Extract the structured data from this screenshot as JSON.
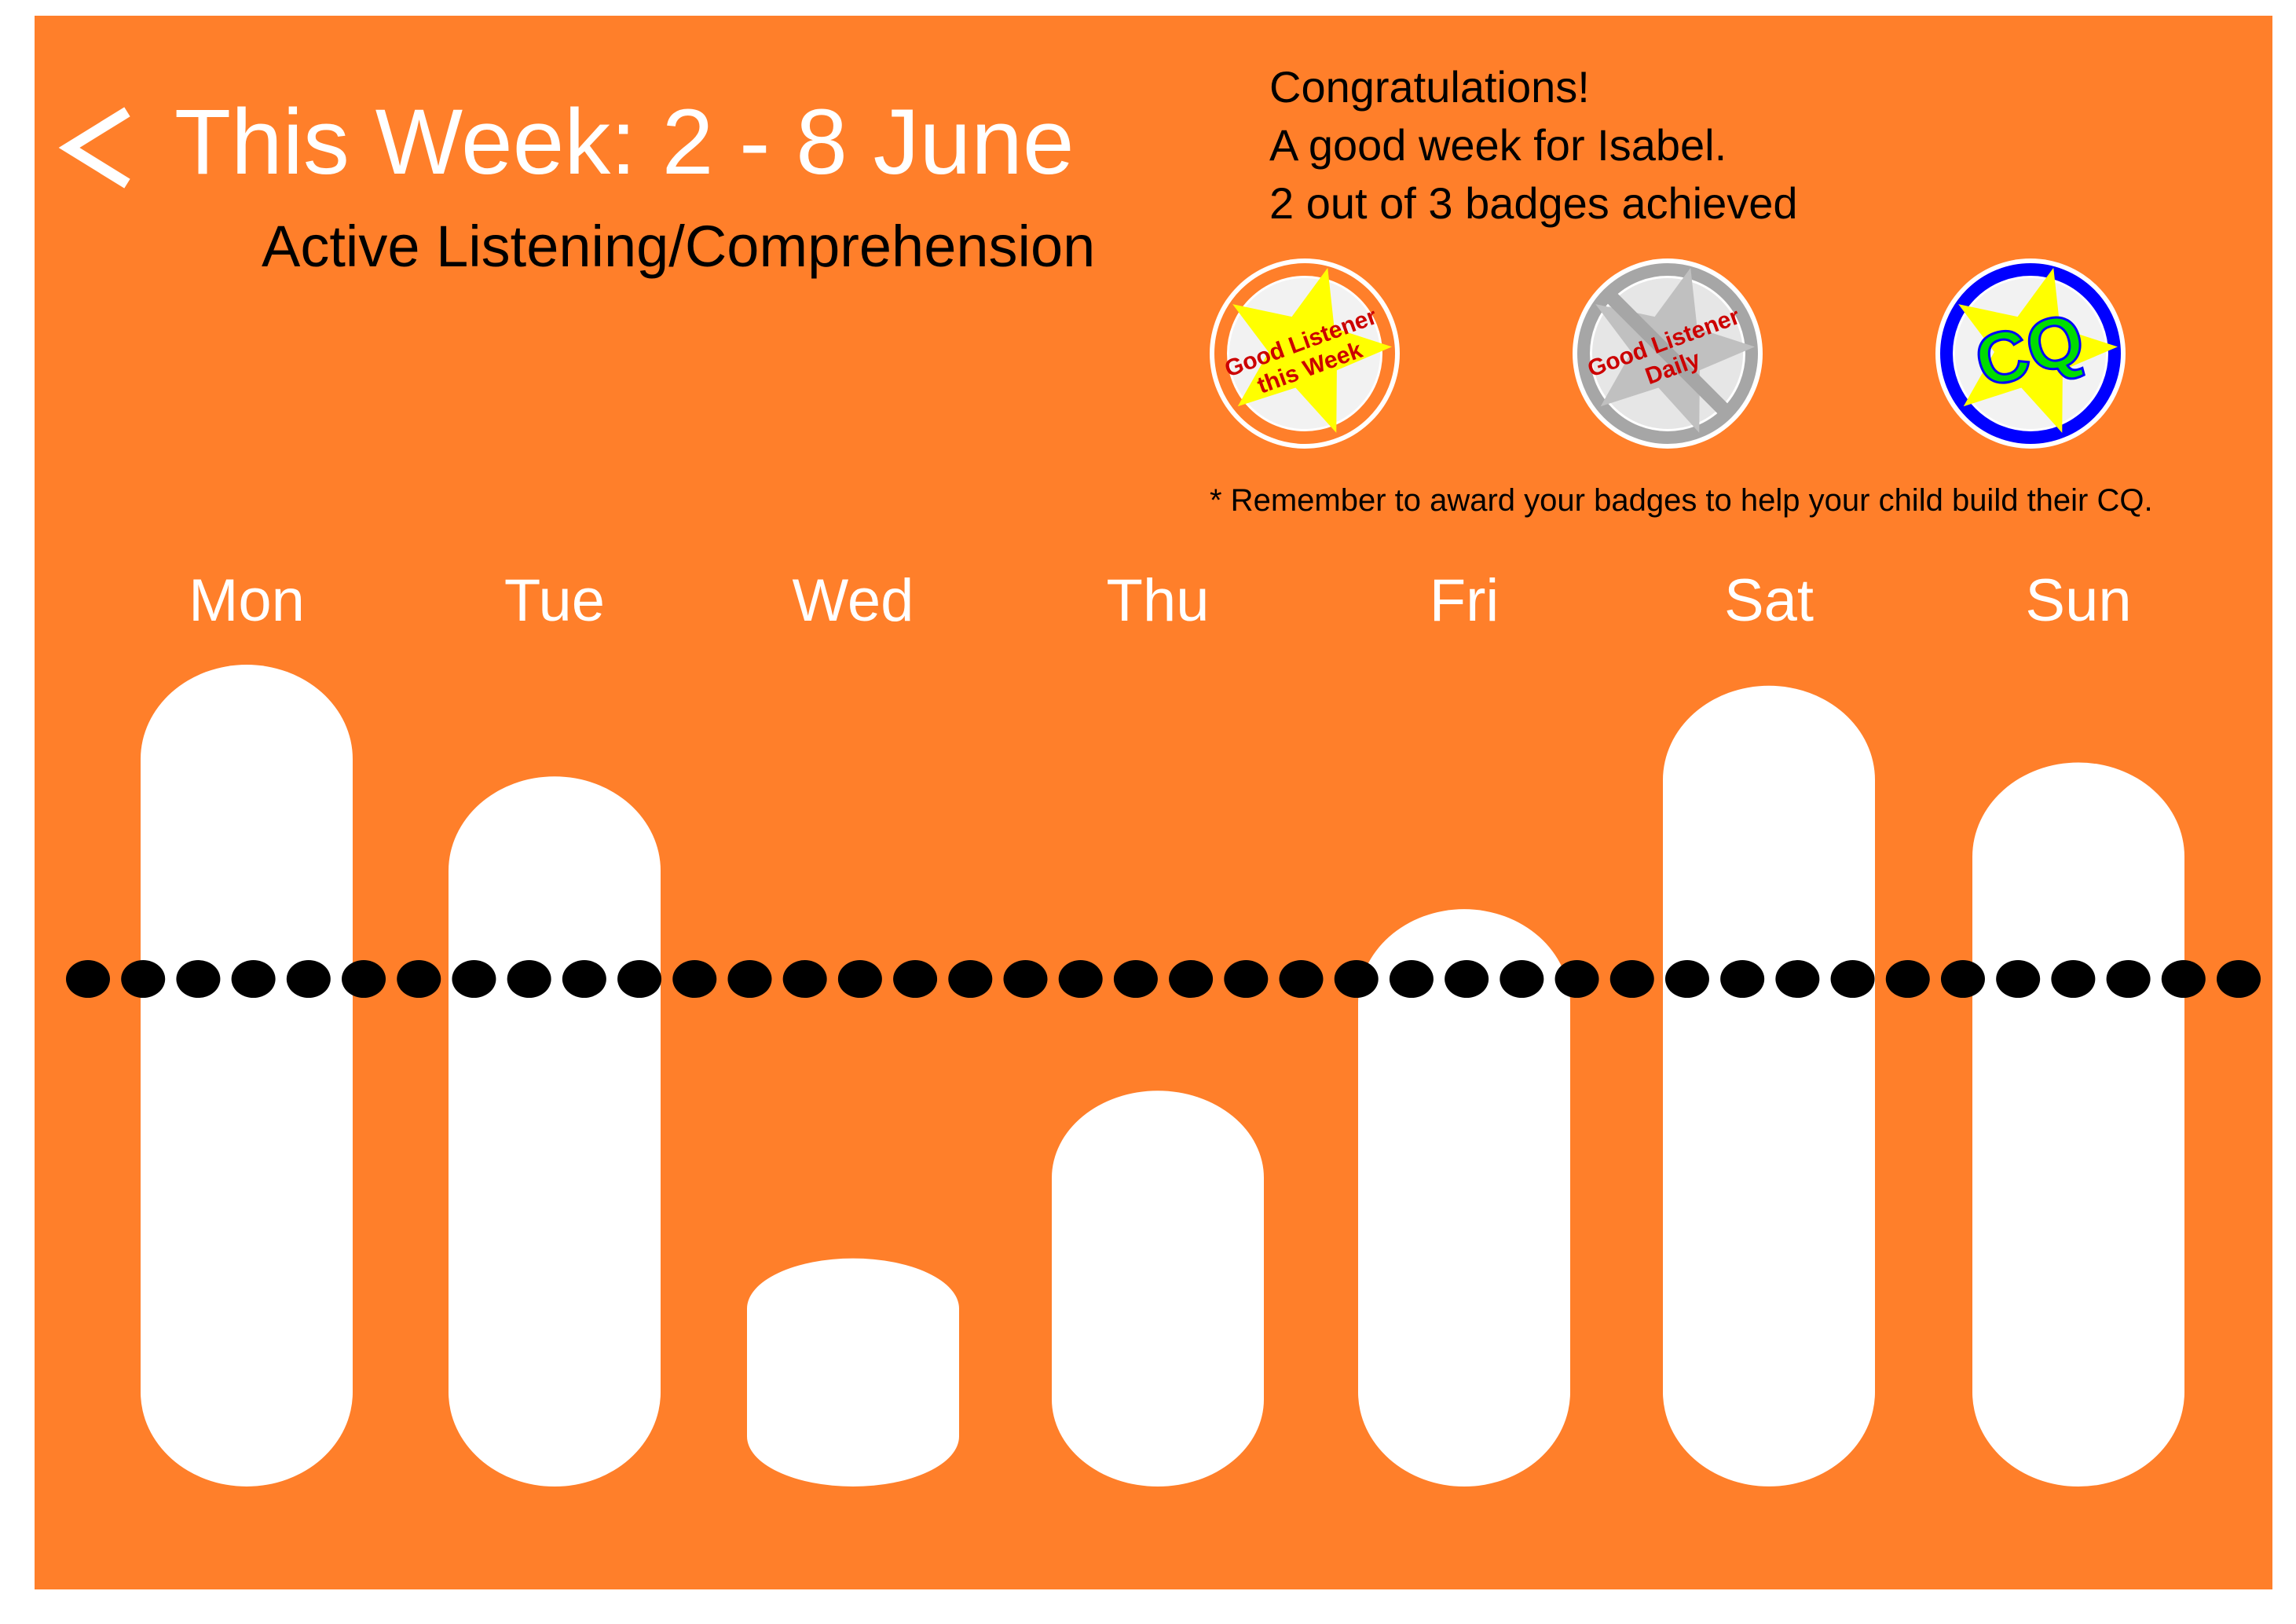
{
  "header": {
    "back_icon": "chevron-left-icon",
    "title": "This Week:  2 - 8 June",
    "subtitle": "Active Listening/Comprehension"
  },
  "summary": {
    "lines": [
      "Congratulations!",
      "A good week for Isabel.",
      "2 out of 3 badges achieved"
    ]
  },
  "badges": [
    {
      "name": "Good Listener this Week",
      "lines": [
        "Good Listener",
        "this Week"
      ],
      "achieved": true,
      "ring_color": "#FF7F2A",
      "star_color": "#FFFF00",
      "text_color": "#CC0000"
    },
    {
      "name": "Good Listener Daily",
      "lines": [
        "Good Listener",
        "Daily"
      ],
      "achieved": false,
      "ring_color": "#A6A6A6",
      "star_color": "#C0C0C0",
      "text_color": "#CC0000"
    },
    {
      "name": "CQ",
      "lines": [
        "CQ"
      ],
      "achieved": true,
      "ring_color": "#0000FF",
      "star_color": "#FFFF00",
      "text_color": "#00DD00"
    }
  ],
  "note": "* Remember to award your badges to help your child build their CQ.",
  "colors": {
    "background": "#FF7F2A",
    "bar": "#FFFFFF",
    "target_line": "#000000",
    "text_light": "#FFFFFF",
    "text_dark": "#000000"
  },
  "chart_data": {
    "type": "bar",
    "categories": [
      "Mon",
      "Tue",
      "Wed",
      "Thu",
      "Fri",
      "Sat",
      "Sun"
    ],
    "values": [
      100,
      84,
      15,
      39,
      65,
      97,
      86
    ],
    "target": 55,
    "ylim": [
      0,
      100
    ],
    "title": "",
    "xlabel": "",
    "ylabel": "",
    "grid": false
  }
}
